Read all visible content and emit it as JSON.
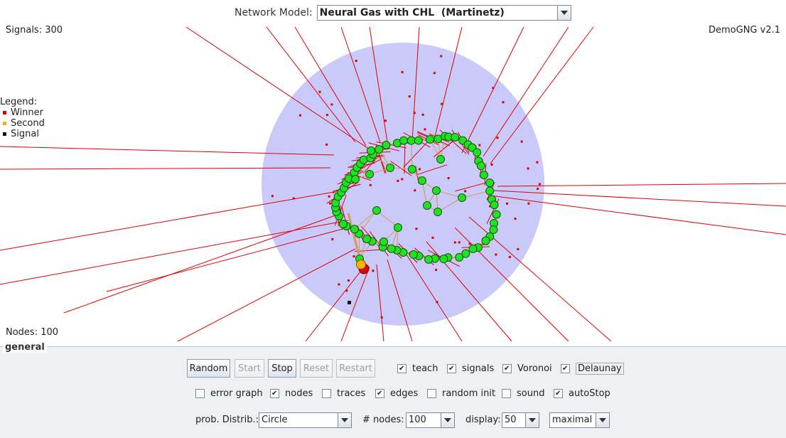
{
  "header": {
    "model_label": "Network Model:",
    "model_value": "Neural Gas with CHL  (Martinetz)",
    "signals": "Signals: 300",
    "version": "DemoGNG v2.1",
    "nodes": "Nodes: 100"
  },
  "legend": {
    "title": "Legend:",
    "items": [
      {
        "label": "Winner",
        "color": "#e00000"
      },
      {
        "label": "Second",
        "color": "#ffb000"
      },
      {
        "label": "Signal",
        "color": "#111111"
      }
    ]
  },
  "colors": {
    "distribution_area": "#c9caf9",
    "voronoi": "#e00000",
    "delaunay": "#d89a5a",
    "node": "#22e022",
    "node_border": "#0a5a0a",
    "signal_dot": "#dd0000"
  },
  "panel": {
    "title": "general",
    "buttons": {
      "random": "Random",
      "start": "Start",
      "stop": "Stop",
      "reset": "Reset",
      "restart": "Restart"
    },
    "checks_row1": [
      {
        "label": "teach",
        "checked": true
      },
      {
        "label": "signals",
        "checked": true
      },
      {
        "label": "Voronoi",
        "checked": true
      },
      {
        "label": "Delaunay",
        "checked": true
      }
    ],
    "checks_row2": [
      {
        "label": "error graph",
        "checked": false
      },
      {
        "label": "nodes",
        "checked": true
      },
      {
        "label": "traces",
        "checked": false
      },
      {
        "label": "edges",
        "checked": true
      },
      {
        "label": "random init",
        "checked": false
      },
      {
        "label": "sound",
        "checked": false
      },
      {
        "label": "autoStop",
        "checked": true
      }
    ],
    "distrib_label": "prob. Distrib.:",
    "distrib_value": "Circle",
    "nodes_label": "# nodes:",
    "nodes_value": "100",
    "display_label": "display:",
    "display_value": "50",
    "speed_value": "maximal"
  }
}
